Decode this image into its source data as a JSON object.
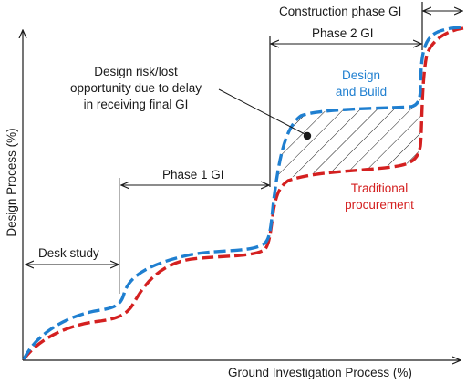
{
  "axes": {
    "x_label": "Ground Investigation Process (%)",
    "y_label": "Design Process (%)"
  },
  "phases": {
    "desk_study": "Desk study",
    "phase1": "Phase 1 GI",
    "phase2": "Phase 2 GI",
    "construction": "Construction phase GI"
  },
  "curves": {
    "design_build_line1": "Design",
    "design_build_line2": "and Build",
    "traditional_line1": "Traditional",
    "traditional_line2": "procurement"
  },
  "annotation": {
    "line1": "Design risk/lost",
    "line2": "opportunity due to delay",
    "line3": "in receiving final GI"
  },
  "colors": {
    "design_build": "#1f7fd0",
    "traditional": "#d42020",
    "axis": "#1a1a1a"
  }
}
